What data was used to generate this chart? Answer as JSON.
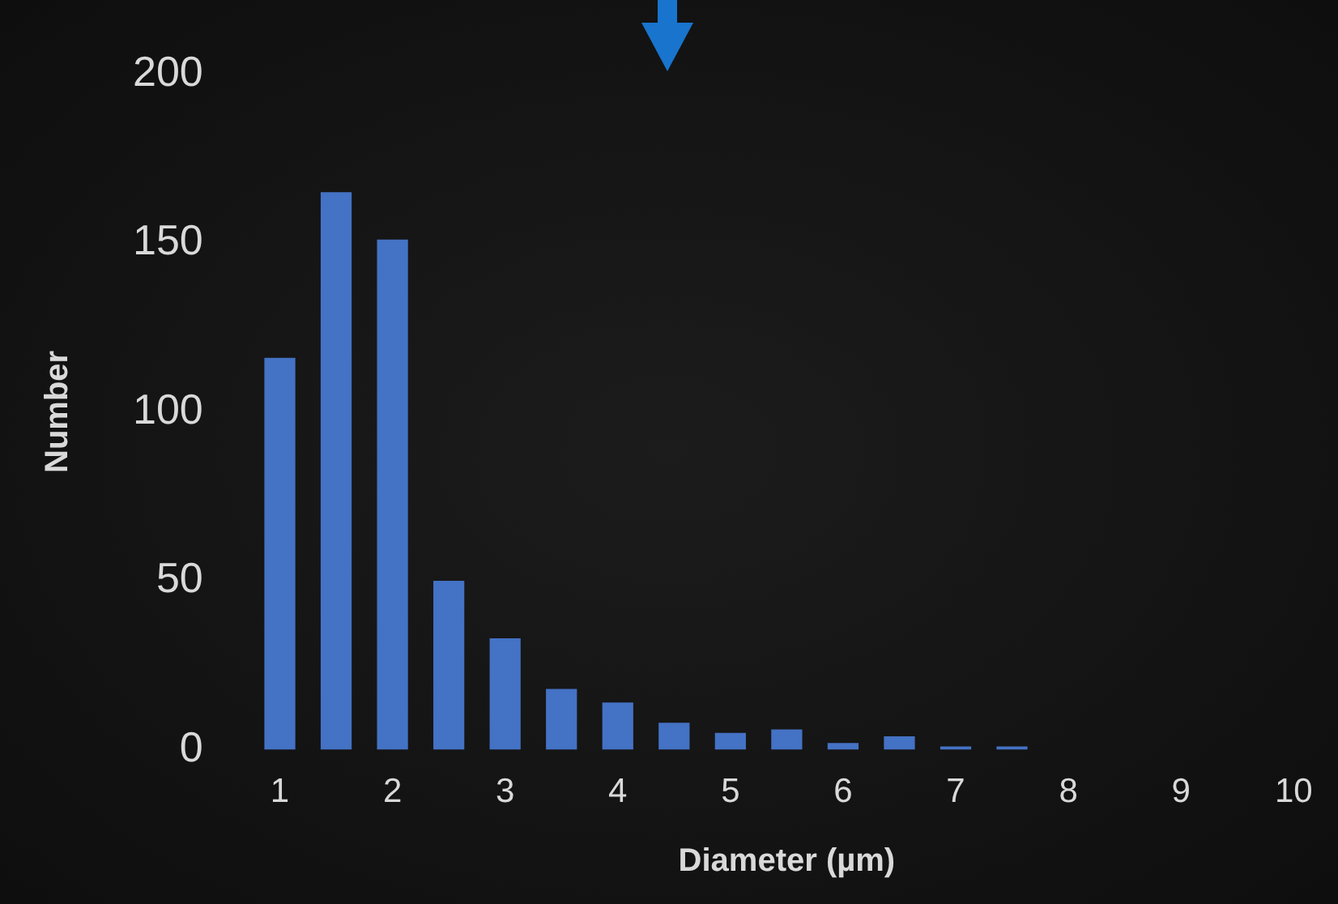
{
  "chart_data": {
    "type": "bar",
    "xlabel": "Diameter (µm)",
    "ylabel": "Number",
    "categories": [
      "1",
      null,
      "2",
      null,
      "3",
      null,
      "4",
      null,
      "5",
      null,
      "6",
      null,
      "7",
      null,
      "8",
      null,
      "9",
      null,
      "10"
    ],
    "values": [
      116,
      165,
      151,
      50,
      33,
      18,
      14,
      8,
      5,
      6,
      2,
      4,
      1,
      1,
      null,
      null,
      null,
      null,
      null
    ],
    "color": "#4472c4",
    "ylim": [
      0,
      200
    ],
    "yticks": [
      0,
      50,
      100,
      150,
      200
    ],
    "grid": false,
    "legend": false
  }
}
